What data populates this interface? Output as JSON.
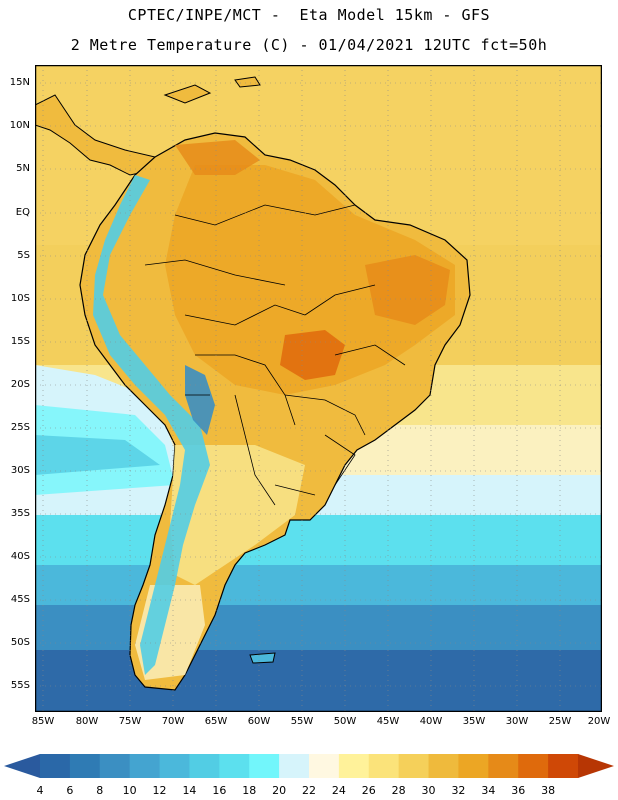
{
  "title": {
    "line1": "CPTEC/INPE/MCT -  Eta Model 15km - GFS",
    "line2": "2 Metre Temperature (C) - 01/04/2021 12UTC fct=50h"
  },
  "latitude_labels": [
    "15N",
    "10N",
    "5N",
    "EQ",
    "5S",
    "10S",
    "15S",
    "20S",
    "25S",
    "30S",
    "35S",
    "40S",
    "45S",
    "50S",
    "55S"
  ],
  "longitude_labels": [
    "85W",
    "80W",
    "75W",
    "70W",
    "65W",
    "60W",
    "55W",
    "50W",
    "45W",
    "40W",
    "35W",
    "30W",
    "25W",
    "20W"
  ],
  "colorbar": {
    "labels": [
      "4",
      "6",
      "8",
      "10",
      "12",
      "14",
      "16",
      "18",
      "20",
      "22",
      "24",
      "26",
      "28",
      "30",
      "32",
      "34",
      "36",
      "38"
    ],
    "colors": [
      "#2a68a8",
      "#2f7bb4",
      "#3b8fc2",
      "#44a4d0",
      "#4bb8db",
      "#52cde4",
      "#5ce0ee",
      "#72f6fb",
      "#d6f4fb",
      "#fff8e1",
      "#fff29a",
      "#fbe37a",
      "#f5d05a",
      "#efba3c",
      "#eca624",
      "#e68a18",
      "#df6a0c",
      "#cf4806"
    ],
    "under_color": "#2a5a9e",
    "over_color": "#b73604"
  },
  "legend_colors": {
    "ocean_cold": "#2e6aa8",
    "ocean_cool": "#4ab6d9",
    "ocean_mild": "#d6f4fb",
    "ocean_warm": "#f4d46a",
    "land_hot": "#eca624",
    "land_very_hot": "#df6a0c",
    "andes": "#52cde4",
    "coast": "#000000"
  }
}
